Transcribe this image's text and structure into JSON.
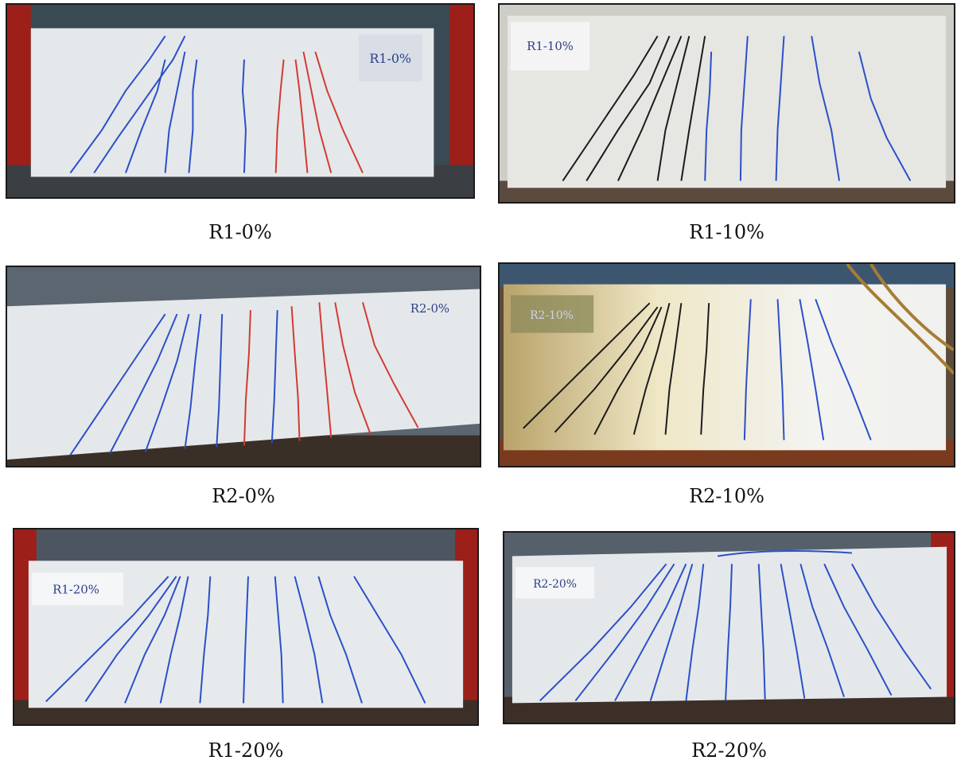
{
  "figure": {
    "panels": [
      {
        "caption": "R1-0%",
        "label": "R1-0%"
      },
      {
        "caption": "R1-10%",
        "label": "R1-10%"
      },
      {
        "caption": "R2-0%",
        "label": "R2-0%"
      },
      {
        "caption": "R2-10%",
        "label": "R2-10%"
      },
      {
        "caption": "R1-20%",
        "label": "R1-20%"
      },
      {
        "caption": "R2-20%",
        "label": "R2-20%"
      }
    ]
  }
}
